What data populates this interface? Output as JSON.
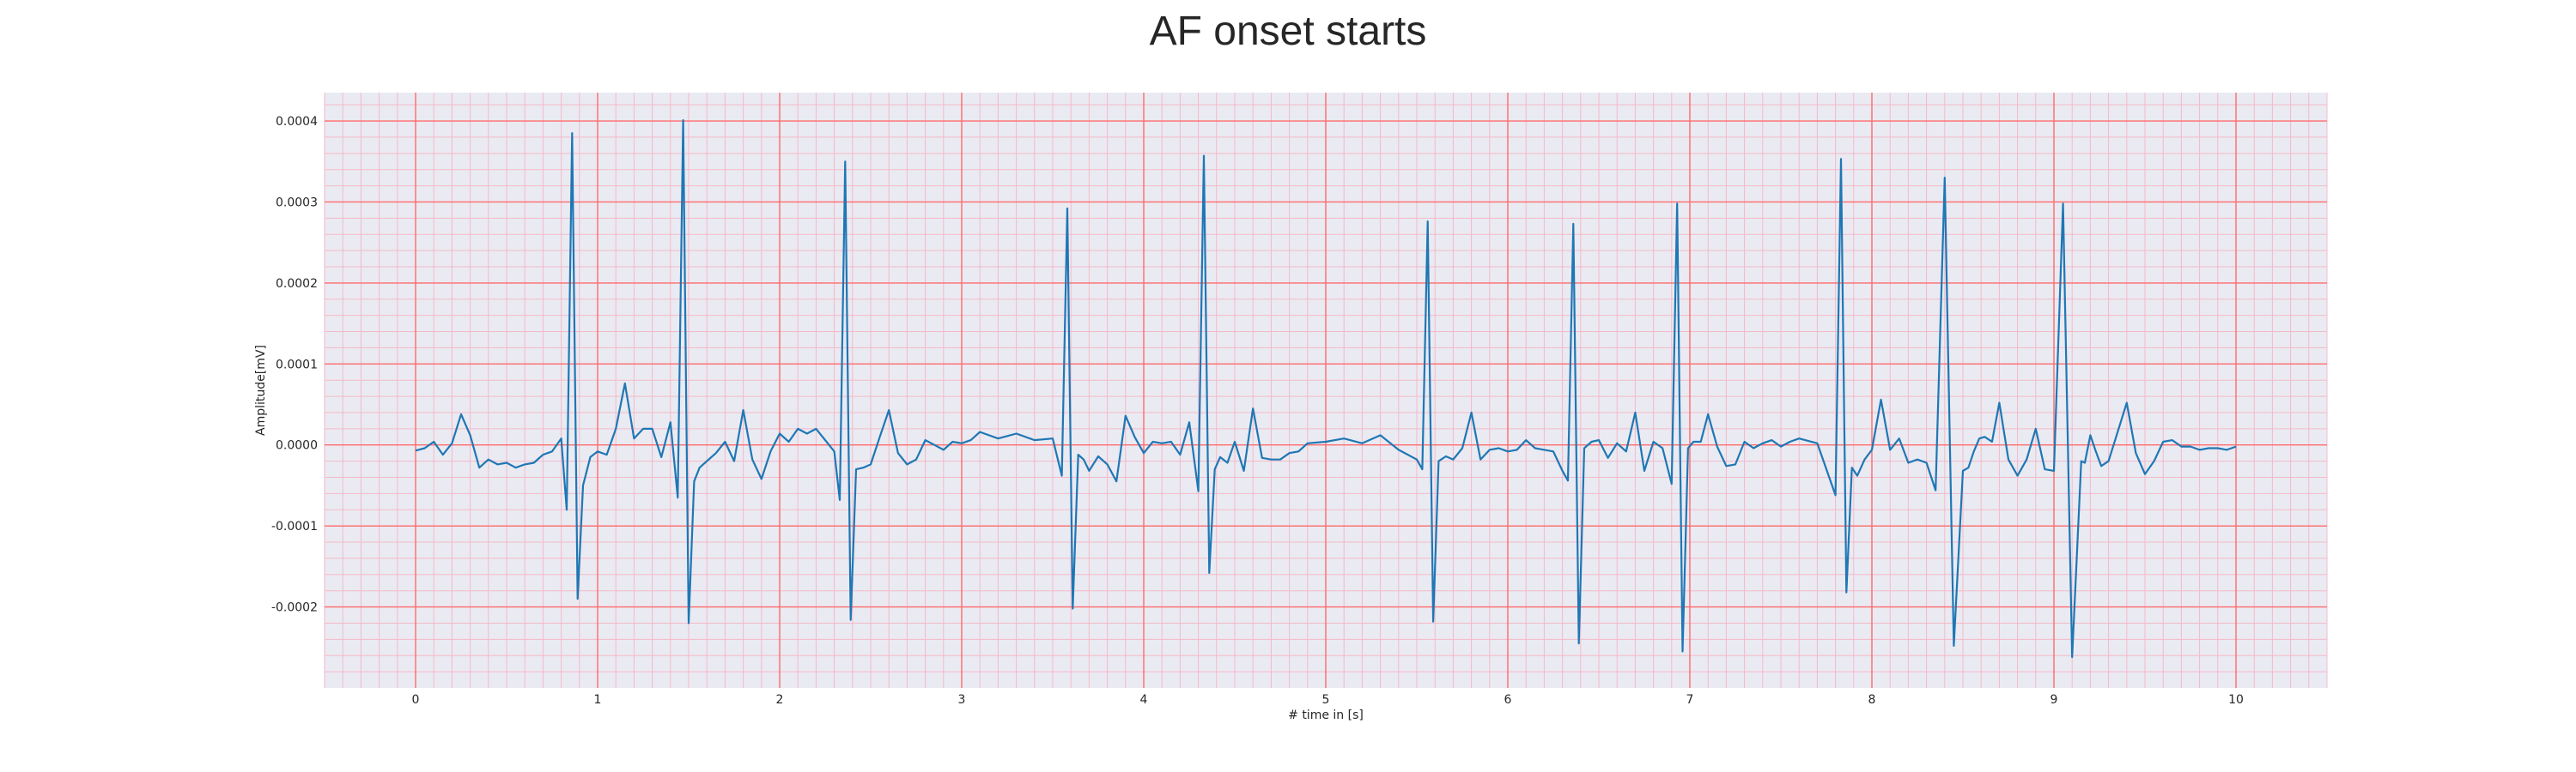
{
  "chart_data": {
    "type": "line",
    "title": "AF onset starts",
    "xlabel": "# time in [s]",
    "ylabel": "Amplitude[mV]",
    "xlim": [
      -0.5,
      10.5
    ],
    "ylim": [
      -0.0003,
      0.000435
    ],
    "xticks": [
      0,
      1,
      2,
      3,
      4,
      5,
      6,
      7,
      8,
      9,
      10
    ],
    "yticks": [
      -0.0002,
      -0.0001,
      0.0,
      0.0001,
      0.0002,
      0.0003,
      0.0004
    ],
    "xtick_labels": [
      "0",
      "1",
      "2",
      "3",
      "4",
      "5",
      "6",
      "7",
      "8",
      "9",
      "10"
    ],
    "ytick_labels": [
      "-0.0002",
      "-0.0001",
      "0.0000",
      "0.0001",
      "0.0002",
      "0.0003",
      "0.0004"
    ],
    "grid": true,
    "minor_grid": true,
    "colors": {
      "background": "#eaeaf2",
      "major_grid": "#ff6b6b",
      "minor_grid": "#f4b9c8",
      "line": "#1f77b4"
    },
    "series": [
      {
        "x": [
          0.0,
          0.05,
          0.1,
          0.15,
          0.2,
          0.25,
          0.3,
          0.35,
          0.4,
          0.45,
          0.5,
          0.55,
          0.6,
          0.65,
          0.7,
          0.75,
          0.8,
          0.83,
          0.86,
          0.89,
          0.92,
          0.96,
          1.0,
          1.05,
          1.1,
          1.15,
          1.2,
          1.25,
          1.3,
          1.35,
          1.4,
          1.44,
          1.47,
          1.5,
          1.53,
          1.56,
          1.6,
          1.65,
          1.7,
          1.75,
          1.8,
          1.85,
          1.9,
          1.95,
          2.0,
          2.05,
          2.1,
          2.15,
          2.2,
          2.25,
          2.3,
          2.33,
          2.36,
          2.39,
          2.42,
          2.46,
          2.5,
          2.55,
          2.6,
          2.65,
          2.7,
          2.75,
          2.8,
          2.85,
          2.9,
          2.95,
          3.0,
          3.05,
          3.1,
          3.2,
          3.3,
          3.4,
          3.5,
          3.55,
          3.58,
          3.61,
          3.64,
          3.67,
          3.7,
          3.75,
          3.8,
          3.85,
          3.9,
          3.95,
          4.0,
          4.05,
          4.1,
          4.15,
          4.2,
          4.25,
          4.3,
          4.33,
          4.36,
          4.39,
          4.42,
          4.46,
          4.5,
          4.55,
          4.6,
          4.65,
          4.7,
          4.75,
          4.8,
          4.85,
          4.9,
          5.0,
          5.1,
          5.2,
          5.3,
          5.4,
          5.5,
          5.53,
          5.56,
          5.59,
          5.62,
          5.66,
          5.7,
          5.75,
          5.8,
          5.85,
          5.9,
          5.95,
          6.0,
          6.05,
          6.1,
          6.15,
          6.2,
          6.25,
          6.3,
          6.33,
          6.36,
          6.39,
          6.42,
          6.46,
          6.5,
          6.55,
          6.6,
          6.65,
          6.7,
          6.75,
          6.8,
          6.85,
          6.9,
          6.93,
          6.96,
          6.99,
          7.02,
          7.06,
          7.1,
          7.15,
          7.2,
          7.25,
          7.3,
          7.35,
          7.4,
          7.45,
          7.5,
          7.55,
          7.6,
          7.7,
          7.8,
          7.83,
          7.86,
          7.89,
          7.92,
          7.96,
          8.0,
          8.05,
          8.1,
          8.15,
          8.2,
          8.25,
          8.3,
          8.35,
          8.4,
          8.45,
          8.5,
          8.53,
          8.56,
          8.59,
          8.62,
          8.66,
          8.7,
          8.75,
          8.8,
          8.85,
          8.9,
          8.95,
          9.0,
          9.05,
          9.1,
          9.15,
          9.17,
          9.2,
          9.23,
          9.26,
          9.3,
          9.35,
          9.4,
          9.45,
          9.5,
          9.55,
          9.6,
          9.65,
          9.7,
          9.75,
          9.8,
          9.85,
          9.9,
          9.95,
          10.0
        ],
        "y": [
          -7e-06,
          -4e-06,
          4e-06,
          -1.2e-05,
          2e-06,
          3.8e-05,
          1.2e-05,
          -2.8e-05,
          -1.8e-05,
          -2.4e-05,
          -2.2e-05,
          -2.8e-05,
          -2.4e-05,
          -2.2e-05,
          -1.2e-05,
          -8e-06,
          8e-06,
          -8e-05,
          0.000385,
          -0.00019,
          -5e-05,
          -1.5e-05,
          -8e-06,
          -1.2e-05,
          2e-05,
          7.6e-05,
          8e-06,
          2e-05,
          2e-05,
          -1.5e-05,
          2.8e-05,
          -6.5e-05,
          0.000401,
          -0.00022,
          -4.5e-05,
          -2.8e-05,
          -2e-05,
          -1e-05,
          4e-06,
          -2e-05,
          4.3e-05,
          -1.8e-05,
          -4.2e-05,
          -8e-06,
          1.4e-05,
          4e-06,
          2e-05,
          1.4e-05,
          2e-05,
          6e-06,
          -8e-06,
          -6.8e-05,
          0.00035,
          -0.000216,
          -3e-05,
          -2.8e-05,
          -2.4e-05,
          1e-05,
          4.3e-05,
          -1e-05,
          -2.4e-05,
          -1.8e-05,
          6e-06,
          0.0,
          -6e-06,
          4e-06,
          2e-06,
          6e-06,
          1.6e-05,
          8e-06,
          1.4e-05,
          6e-06,
          8e-06,
          -3.8e-05,
          0.000292,
          -0.000202,
          -1.2e-05,
          -1.8e-05,
          -3.2e-05,
          -1.4e-05,
          -2.4e-05,
          -4.5e-05,
          3.6e-05,
          1e-05,
          -1e-05,
          4e-06,
          2e-06,
          4e-06,
          -1.2e-05,
          2.8e-05,
          -5.7e-05,
          0.000357,
          -0.000158,
          -3e-05,
          -1.5e-05,
          -2.2e-05,
          4e-06,
          -3.2e-05,
          4.5e-05,
          -1.6e-05,
          -1.8e-05,
          -1.8e-05,
          -1e-05,
          -8e-06,
          2e-06,
          4e-06,
          8e-06,
          2e-06,
          1.2e-05,
          -6e-06,
          -1.8e-05,
          -3e-05,
          0.000276,
          -0.000218,
          -2e-05,
          -1.4e-05,
          -1.8e-05,
          -4e-06,
          4e-05,
          -1.8e-05,
          -6e-06,
          -4e-06,
          -8e-06,
          -6e-06,
          6e-06,
          -4e-06,
          -6e-06,
          -8e-06,
          -3.2e-05,
          -4.4e-05,
          0.000273,
          -0.000245,
          -4e-06,
          4e-06,
          6e-06,
          -1.6e-05,
          2e-06,
          -8e-06,
          4e-05,
          -3.2e-05,
          4e-06,
          -4e-06,
          -4.8e-05,
          0.000298,
          -0.000255,
          -4e-06,
          4e-06,
          4e-06,
          3.8e-05,
          -2e-06,
          -2.6e-05,
          -2.4e-05,
          4e-06,
          -4e-06,
          2e-06,
          6e-06,
          -2e-06,
          4e-06,
          8e-06,
          2e-06,
          -6.2e-05,
          0.000353,
          -0.000182,
          -2.8e-05,
          -3.8e-05,
          -1.8e-05,
          -6e-06,
          5.6e-05,
          -6e-06,
          8e-06,
          -2.2e-05,
          -1.8e-05,
          -2.2e-05,
          -5.6e-05,
          0.00033,
          -0.000248,
          -3.2e-05,
          -2.8e-05,
          -8e-06,
          8e-06,
          1e-05,
          4e-06,
          5.2e-05,
          -1.8e-05,
          -3.8e-05,
          -1.8e-05,
          2e-05,
          -3e-05,
          -3.2e-05,
          0.000298,
          -0.000262,
          -2e-05,
          -2.2e-05,
          1.2e-05,
          -8e-06,
          -2.6e-05,
          -2e-05,
          1.6e-05,
          5.2e-05,
          -1e-05,
          -3.6e-05,
          -2e-05,
          4e-06,
          6e-06,
          -2e-06,
          -2e-06,
          -6e-06,
          -4e-06,
          -4e-06,
          -6e-06,
          -2e-06
        ]
      }
    ]
  }
}
